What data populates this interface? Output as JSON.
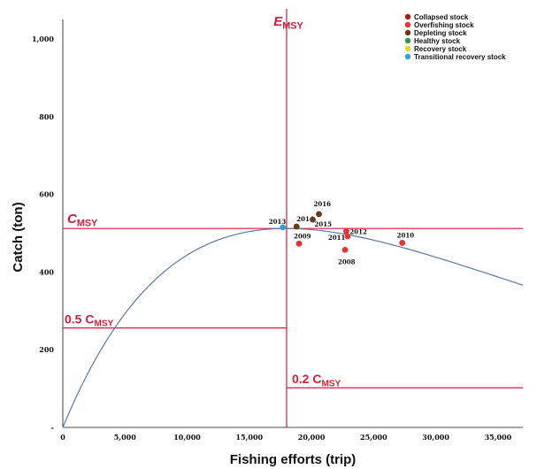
{
  "chart_data": {
    "type": "scatter",
    "xlabel": "Fishing efforts (trip)",
    "ylabel": "Catch (ton)",
    "xlim": [
      0,
      37000
    ],
    "ylim": [
      0,
      1050
    ],
    "x_ticks": [
      0,
      5000,
      10000,
      15000,
      20000,
      25000,
      30000,
      35000
    ],
    "x_tick_labels": [
      "0",
      "5,000",
      "10,000",
      "15,000",
      "20,000",
      "25,000",
      "30,000",
      "35,000"
    ],
    "y_ticks": [
      0,
      200,
      400,
      600,
      800,
      1000
    ],
    "y_tick_labels": [
      "-",
      "200",
      "400",
      "600",
      "800",
      "1,000"
    ],
    "grid": false,
    "legend_position": "top-right",
    "colors": {
      "reference_lines": "#d81b3c",
      "curve": "#5a78b0"
    },
    "reference": {
      "emsy": 18000,
      "cmsy": 512,
      "emsy_label": "E",
      "emsy_sub": "MSY",
      "cmsy_label": "C",
      "cmsy_sub": "MSY",
      "half_cmsy_value": 256,
      "half_cmsy_label_prefix": "0.5 C",
      "half_cmsy_label_sub": "MSY",
      "fifth_cmsy_value": 102,
      "fifth_cmsy_label_prefix": "0.2 C",
      "fifth_cmsy_label_sub": "MSY"
    },
    "curve": {
      "name": "Fox surplus production curve",
      "peak_x": 18000,
      "peak_y": 512
    },
    "legend": [
      {
        "name": "Collapsed stock",
        "color": "#b01818"
      },
      {
        "name": "Overfishing stock",
        "color": "#e8332a"
      },
      {
        "name": "Depleting stock",
        "color": "#6b3a14"
      },
      {
        "name": "Healthy stock",
        "color": "#2e9a4a"
      },
      {
        "name": "Recovery stock",
        "color": "#d8e020"
      },
      {
        "name": "Transitional recovery stock",
        "color": "#2aa6c6"
      }
    ],
    "points": [
      {
        "year": "2008",
        "x": 22700,
        "y": 457,
        "status": "Overfishing stock",
        "color": "#e8332a"
      },
      {
        "year": "2009",
        "x": 19000,
        "y": 473,
        "status": "Overfishing stock",
        "color": "#e8332a"
      },
      {
        "year": "2010",
        "x": 27300,
        "y": 475,
        "status": "Overfishing stock",
        "color": "#e8332a"
      },
      {
        "year": "2011",
        "x": 22900,
        "y": 492,
        "status": "Overfishing stock",
        "color": "#e8332a"
      },
      {
        "year": "2012",
        "x": 22800,
        "y": 505,
        "status": "Overfishing stock",
        "color": "#e8332a"
      },
      {
        "year": "2013",
        "x": 17700,
        "y": 515,
        "status": "Transitional recovery stock",
        "color": "#2aa6c6"
      },
      {
        "year": "2014",
        "x": 18800,
        "y": 517,
        "status": "Depleting stock",
        "color": "#6b3a14"
      },
      {
        "year": "2015",
        "x": 20100,
        "y": 535,
        "status": "Depleting stock",
        "color": "#6b3a14"
      },
      {
        "year": "2016",
        "x": 20600,
        "y": 549,
        "status": "Depleting stock",
        "color": "#6b3a14"
      }
    ]
  }
}
